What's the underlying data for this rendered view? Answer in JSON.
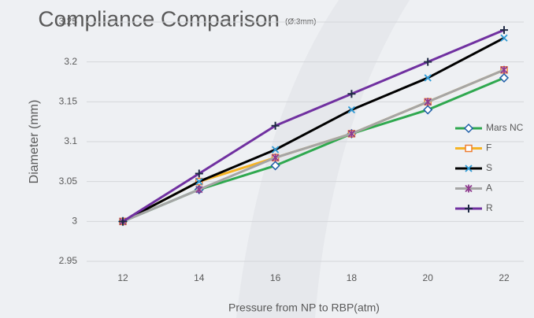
{
  "chart_data": {
    "type": "line",
    "title": "Compliance Comparison",
    "subtitle": "(Ø:3mm)",
    "y_label": "Diameter (mm)",
    "x_label": "Pressure from NP to RBP(atm)",
    "categories": [
      "12",
      "14",
      "16",
      "18",
      "20",
      "22"
    ],
    "ylim": [
      2.95,
      3.25
    ],
    "yticks": [
      2.95,
      3,
      3.05,
      3.1,
      3.15,
      3.2,
      3.25
    ],
    "grid": true,
    "legend": "right",
    "series": [
      {
        "name": "Mars NC",
        "color": "#2fa84f",
        "marker": "diamond",
        "marker_color": "#1f5fa8",
        "values": [
          3,
          3.04,
          3.07,
          3.11,
          3.14,
          3.18
        ]
      },
      {
        "name": "F",
        "color": "#f5b324",
        "marker": "square",
        "marker_color": "#ed7d31",
        "values": [
          3,
          3.05,
          3.08,
          3.11,
          3.15,
          3.19
        ]
      },
      {
        "name": "S",
        "color": "#000000",
        "marker": "x",
        "marker_color": "#2e9bd6",
        "values": [
          3,
          3.05,
          3.09,
          3.14,
          3.18,
          3.23
        ]
      },
      {
        "name": "A",
        "color": "#a5a5a5",
        "marker": "star",
        "marker_color": "#8e3a8e",
        "values": [
          3,
          3.04,
          3.08,
          3.11,
          3.15,
          3.19
        ]
      },
      {
        "name": "R",
        "color": "#7030a0",
        "marker": "plus",
        "marker_color": "#1f2a44",
        "values": [
          3,
          3.06,
          3.12,
          3.16,
          3.2,
          3.24
        ]
      }
    ]
  }
}
